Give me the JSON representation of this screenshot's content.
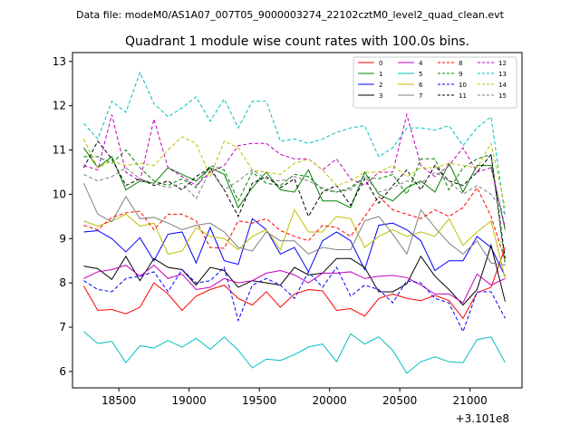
{
  "suptitle": "Data file: modeM0/AS1A07_007T05_9000003274_22102cztM0_level2_quad_clean.evt",
  "chart_data": {
    "type": "line",
    "title": "Quadrant 1 module wise count rates with 100.0s bins.",
    "xlabel": "",
    "ylabel": "",
    "x_offset_label": "+3.101e8",
    "xlim": [
      18170,
      21370
    ],
    "ylim": [
      5.63,
      13.2
    ],
    "xticks": [
      18500,
      19000,
      19500,
      20000,
      20500,
      21000
    ],
    "yticks": [
      6,
      7,
      8,
      9,
      10,
      11,
      12,
      13
    ],
    "legend_position": "top-right",
    "x": [
      18250,
      18350,
      18450,
      18550,
      18650,
      18750,
      18850,
      18950,
      19050,
      19150,
      19250,
      19350,
      19450,
      19550,
      19650,
      19750,
      19850,
      19950,
      20050,
      20150,
      20250,
      20350,
      20450,
      20550,
      20650,
      20750,
      20850,
      20950,
      21050,
      21150,
      21250
    ],
    "series": [
      {
        "name": "0",
        "color": "#ff0000",
        "dash": "solid",
        "values": [
          7.93,
          7.38,
          7.4,
          7.3,
          7.45,
          8.0,
          7.75,
          7.38,
          7.7,
          7.85,
          7.95,
          7.65,
          7.5,
          7.8,
          7.45,
          7.75,
          7.85,
          7.82,
          7.38,
          7.42,
          7.25,
          7.65,
          7.75,
          7.65,
          7.6,
          7.72,
          7.6,
          7.2,
          7.78,
          7.9,
          8.8
        ]
      },
      {
        "name": "1",
        "color": "#008000",
        "dash": "solid",
        "values": [
          11.05,
          10.6,
          10.85,
          10.1,
          10.3,
          10.25,
          10.6,
          10.45,
          10.3,
          10.6,
          10.45,
          9.7,
          10.15,
          10.5,
          10.1,
          10.05,
          10.55,
          9.85,
          9.85,
          9.7,
          10.5,
          10.0,
          9.85,
          10.15,
          10.3,
          10.05,
          10.7,
          10.05,
          10.65,
          10.65,
          9.2
        ]
      },
      {
        "name": "2",
        "color": "#0000ff",
        "dash": "solid",
        "values": [
          9.15,
          9.18,
          9.0,
          8.7,
          9.02,
          8.5,
          9.1,
          9.15,
          8.45,
          9.25,
          8.5,
          8.42,
          9.45,
          9.2,
          8.65,
          8.8,
          8.25,
          8.95,
          9.15,
          8.95,
          8.3,
          9.3,
          9.35,
          9.2,
          8.95,
          8.28,
          8.5,
          8.5,
          9.05,
          8.8,
          8.15
        ]
      },
      {
        "name": "3",
        "color": "#000000",
        "dash": "solid",
        "values": [
          8.38,
          8.32,
          8.08,
          8.6,
          8.05,
          8.55,
          8.35,
          8.3,
          7.95,
          8.35,
          8.28,
          7.9,
          8.05,
          8.0,
          7.95,
          8.35,
          8.18,
          8.22,
          8.55,
          8.55,
          8.35,
          7.8,
          7.8,
          7.98,
          8.6,
          8.15,
          7.85,
          7.5,
          7.85,
          8.85,
          7.58
        ]
      },
      {
        "name": "4",
        "color": "#bf00bf",
        "dash": "solid",
        "values": [
          8.1,
          8.25,
          8.3,
          8.4,
          8.15,
          8.4,
          8.1,
          8.2,
          7.85,
          7.9,
          8.1,
          8.0,
          8.05,
          8.22,
          8.28,
          8.18,
          8.0,
          8.22,
          8.22,
          8.25,
          8.1,
          8.15,
          8.17,
          8.12,
          7.95,
          7.75,
          7.75,
          7.55,
          8.2,
          7.95,
          8.1
        ]
      },
      {
        "name": "5",
        "color": "#00bfbf",
        "dash": "solid",
        "values": [
          6.9,
          6.63,
          6.68,
          6.2,
          6.58,
          6.53,
          6.7,
          6.55,
          6.75,
          6.5,
          6.78,
          6.48,
          6.08,
          6.28,
          6.25,
          6.38,
          6.55,
          6.62,
          6.22,
          6.85,
          6.62,
          6.78,
          6.48,
          5.96,
          6.22,
          6.33,
          6.22,
          6.2,
          6.72,
          6.78,
          6.2
        ]
      },
      {
        "name": "6",
        "color": "#bfbf00",
        "dash": "solid",
        "values": [
          9.4,
          9.28,
          9.4,
          9.55,
          9.28,
          9.35,
          8.65,
          8.72,
          9.25,
          9.05,
          9.0,
          8.75,
          9.05,
          9.2,
          8.75,
          9.65,
          9.15,
          9.15,
          9.5,
          9.45,
          8.8,
          9.05,
          9.2,
          9.05,
          9.15,
          9.05,
          9.45,
          8.85,
          9.15,
          9.4,
          8.1
        ]
      },
      {
        "name": "7",
        "color": "#808080",
        "dash": "solid",
        "values": [
          10.25,
          9.55,
          9.38,
          9.95,
          9.45,
          9.48,
          9.35,
          9.2,
          9.3,
          9.35,
          9.15,
          8.8,
          8.72,
          9.15,
          8.95,
          8.95,
          8.65,
          8.8,
          8.75,
          8.75,
          9.4,
          9.5,
          9.1,
          8.65,
          9.65,
          9.25,
          8.9,
          8.65,
          8.95,
          8.45,
          8.4
        ]
      },
      {
        "name": "8",
        "color": "#ff0000",
        "dash": "dashed",
        "values": [
          9.3,
          9.2,
          9.48,
          9.58,
          9.62,
          9.2,
          9.55,
          9.55,
          9.4,
          8.8,
          8.78,
          9.4,
          9.35,
          9.45,
          9.18,
          9.05,
          8.95,
          9.3,
          9.25,
          9.05,
          9.5,
          9.95,
          9.65,
          9.55,
          9.45,
          9.65,
          9.5,
          9.7,
          10.15,
          9.5,
          8.5
        ]
      },
      {
        "name": "9",
        "color": "#008000",
        "dash": "dashed",
        "values": [
          10.85,
          10.85,
          10.7,
          11.0,
          10.6,
          10.3,
          10.2,
          10.35,
          10.15,
          10.65,
          10.55,
          9.85,
          10.5,
          10.25,
          10.2,
          10.45,
          10.4,
          10.1,
          10.05,
          10.15,
          10.4,
          10.35,
          10.45,
          10.0,
          10.8,
          10.8,
          10.1,
          10.6,
          10.8,
          10.9,
          8.4
        ]
      },
      {
        "name": "10",
        "color": "#0000ff",
        "dash": "dashed",
        "values": [
          8.05,
          7.85,
          7.8,
          8.1,
          8.15,
          8.25,
          7.8,
          8.3,
          8.0,
          8.05,
          8.35,
          7.15,
          7.95,
          8.1,
          7.95,
          7.65,
          8.25,
          7.9,
          8.35,
          7.7,
          7.95,
          7.85,
          7.55,
          8.05,
          8.0,
          7.65,
          7.55,
          6.9,
          7.8,
          7.8,
          7.2
        ]
      },
      {
        "name": "11",
        "color": "#000000",
        "dash": "dashed",
        "values": [
          10.6,
          11.2,
          10.8,
          10.2,
          10.35,
          10.2,
          10.3,
          10.1,
          10.4,
          10.6,
          10.1,
          9.5,
          10.25,
          10.4,
          10.15,
          10.35,
          9.5,
          10.05,
          10.2,
          9.75,
          10.35,
          9.8,
          10.2,
          10.55,
          10.1,
          10.65,
          10.3,
          10.2,
          10.5,
          10.9,
          8.55
        ]
      },
      {
        "name": "12",
        "color": "#bf00bf",
        "dash": "dashed",
        "values": [
          10.65,
          10.55,
          11.8,
          10.5,
          10.3,
          11.7,
          10.6,
          10.4,
          10.2,
          10.5,
          10.65,
          11.1,
          11.15,
          11.15,
          10.9,
          10.8,
          10.8,
          10.55,
          10.8,
          10.35,
          10.2,
          10.5,
          10.5,
          11.8,
          10.65,
          10.4,
          10.65,
          11.05,
          10.5,
          10.6,
          9.25
        ]
      },
      {
        "name": "13",
        "color": "#00bfbf",
        "dash": "dashed",
        "values": [
          11.6,
          11.25,
          12.1,
          11.85,
          12.75,
          12.05,
          11.75,
          11.95,
          12.2,
          11.65,
          12.15,
          11.5,
          12.1,
          12.1,
          11.2,
          11.25,
          11.15,
          11.25,
          11.4,
          11.5,
          11.55,
          10.85,
          11.05,
          11.5,
          11.5,
          11.45,
          11.55,
          11.1,
          11.5,
          11.75,
          9.5
        ]
      },
      {
        "name": "14",
        "color": "#bfbf00",
        "dash": "dashed",
        "values": [
          11.25,
          10.6,
          10.75,
          10.65,
          10.7,
          10.65,
          11.0,
          11.3,
          11.15,
          10.4,
          11.2,
          11.05,
          10.55,
          10.5,
          10.45,
          10.7,
          10.8,
          10.55,
          10.2,
          10.3,
          10.5,
          10.5,
          10.65,
          10.4,
          10.6,
          10.6,
          10.7,
          10.65,
          10.6,
          11.15,
          9.7
        ]
      },
      {
        "name": "15",
        "color": "#808080",
        "dash": "dashed",
        "values": [
          10.45,
          10.3,
          10.4,
          10.6,
          10.35,
          10.25,
          10.15,
          10.25,
          9.9,
          10.55,
          10.1,
          10.3,
          10.55,
          10.35,
          10.3,
          10.4,
          10.3,
          10.15,
          10.05,
          10.1,
          10.4,
          10.05,
          10.15,
          10.3,
          10.25,
          10.5,
          10.3,
          10.0,
          10.2,
          10.0,
          9.55
        ]
      }
    ]
  }
}
